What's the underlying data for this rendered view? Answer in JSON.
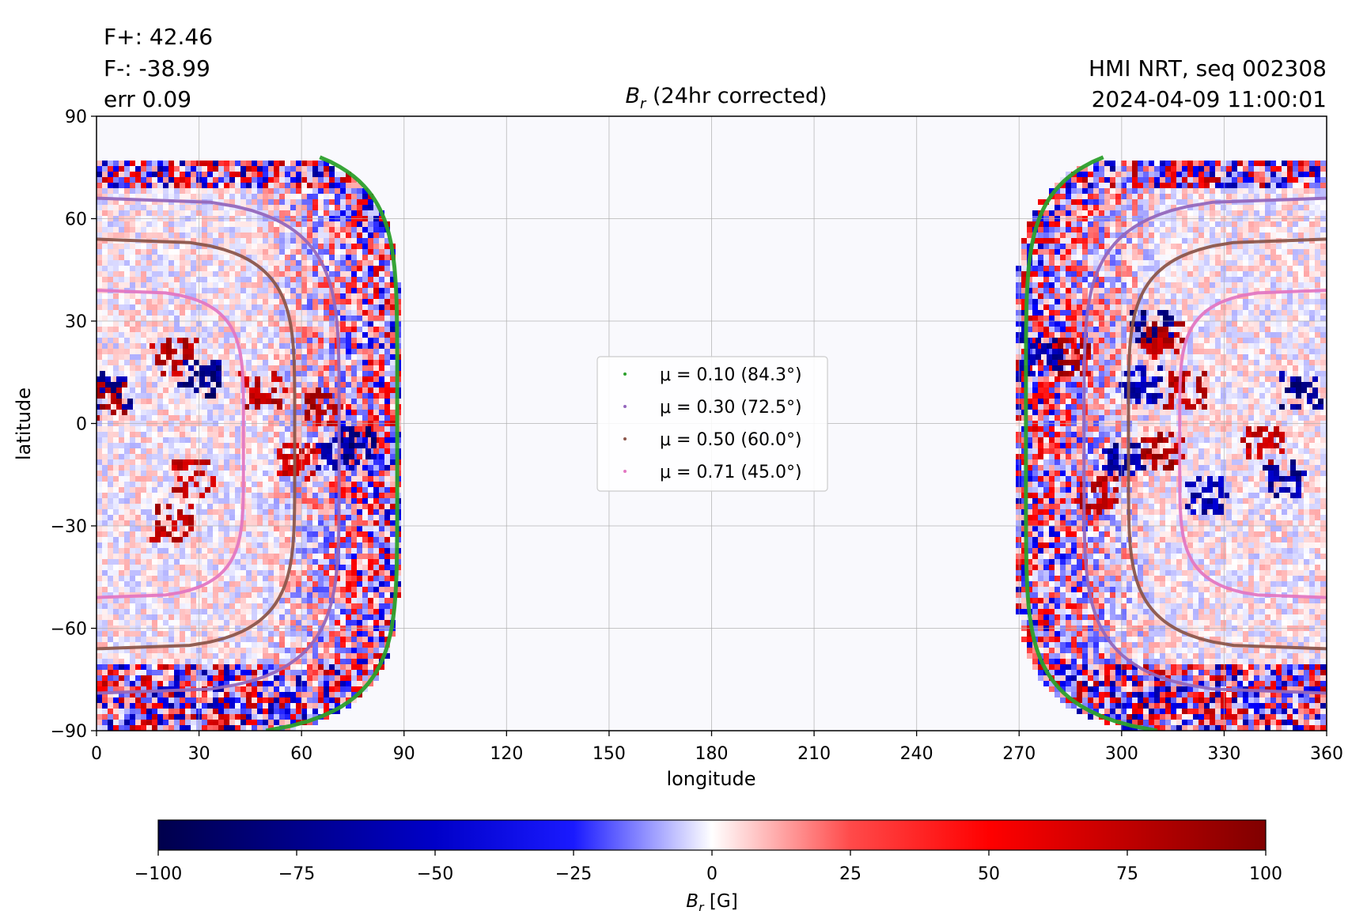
{
  "chart_data": {
    "type": "heatmap",
    "title": "B_r (24hr corrected)",
    "title_parts": {
      "symbol": "B",
      "subscript": "r",
      "rest": " (24hr corrected)"
    },
    "stats": {
      "fplus": "F+: 42.46",
      "fminus": "F-: -38.99",
      "err": "err 0.09"
    },
    "source": {
      "line1": "HMI NRT, seq 002308",
      "line2": "2024-04-09 11:00:01"
    },
    "xlabel": "longitude",
    "ylabel": "latitude",
    "xlim": [
      0,
      360
    ],
    "ylim": [
      -90,
      90
    ],
    "xticks": [
      0,
      30,
      60,
      90,
      120,
      150,
      180,
      210,
      240,
      270,
      300,
      330,
      360
    ],
    "yticks": [
      -90,
      -60,
      -30,
      0,
      30,
      60,
      90
    ],
    "grid": true,
    "disk_visible": {
      "left": {
        "lon_min": 0,
        "lon_max_at_equator": 88
      },
      "right": {
        "lon_min_at_equator": 268,
        "lon_max": 360
      },
      "top_latitude": 78
    },
    "colormap": "seismic",
    "colorbar": {
      "label": "B_r [G]",
      "label_parts": {
        "symbol": "B",
        "subscript": "r",
        "rest": " [G]"
      },
      "range": [
        -100,
        100
      ],
      "ticks": [
        -100,
        -75,
        -50,
        -25,
        0,
        25,
        50,
        75,
        100
      ]
    },
    "mu_contours": [
      {
        "label": "μ = 0.10 (84.3°)",
        "mu": "0.10",
        "angle": "84.3°",
        "color": "#2ca02c"
      },
      {
        "label": "μ = 0.30 (72.5°)",
        "mu": "0.30",
        "angle": "72.5°",
        "color": "#9467bd"
      },
      {
        "label": "μ = 0.50 (60.0°)",
        "mu": "0.50",
        "angle": "60.0°",
        "color": "#8c564b"
      },
      {
        "label": "μ = 0.71 (45.0°)",
        "mu": "0.71",
        "angle": "45.0°",
        "color": "#e377c2"
      }
    ],
    "legend_position": "center"
  }
}
